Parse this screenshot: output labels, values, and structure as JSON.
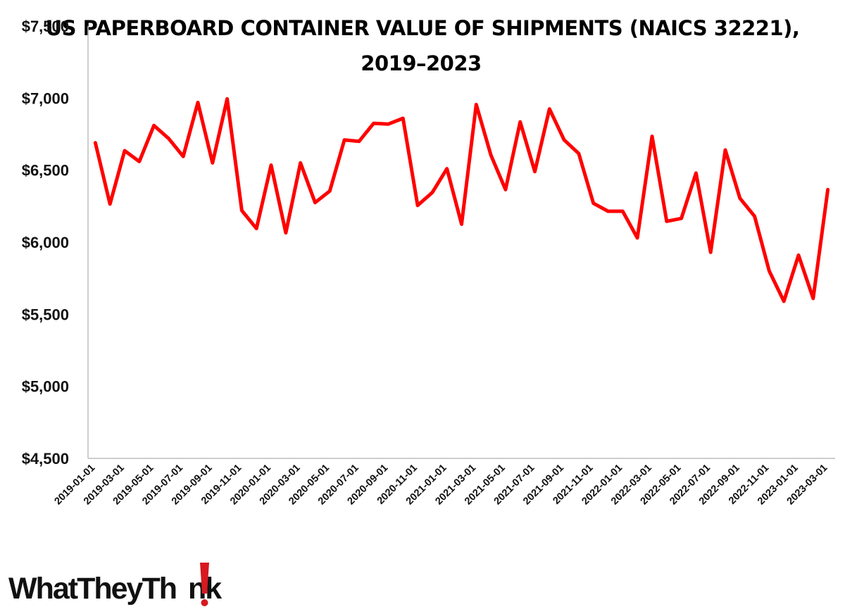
{
  "chart_data": {
    "type": "line",
    "title_lines": [
      "US  PAPERBOARD CONTAINER VALUE OF SHIPMENTS (NAICS 32221),",
      "2019–2023"
    ],
    "xlabel": "",
    "ylabel": "",
    "ylim": [
      4500,
      7500
    ],
    "yticks": [
      "$4,500",
      "$5,000",
      "$5,500",
      "$6,000",
      "$6,500",
      "$7,000",
      "$7,500"
    ],
    "ytick_values": [
      4500,
      5000,
      5500,
      6000,
      6500,
      7000,
      7500
    ],
    "xticks": [
      "2019-01-01",
      "2019-03-01",
      "2019-05-01",
      "2019-07-01",
      "2019-09-01",
      "2019-11-01",
      "2020-01-01",
      "2020-03-01",
      "2020-05-01",
      "2020-07-01",
      "2020-09-01",
      "2020-11-01",
      "2021-01-01",
      "2021-03-01",
      "2021-05-01",
      "2021-07-01",
      "2021-09-01",
      "2021-11-01",
      "2022-01-01",
      "2022-03-01",
      "2022-05-01",
      "2022-07-01",
      "2022-09-01",
      "2022-11-01",
      "2023-01-01",
      "2023-03-01"
    ],
    "grid": false,
    "legend": "none",
    "series": [
      {
        "color": "#ff0000",
        "x": [
          "2019-01-01",
          "2019-02-01",
          "2019-03-01",
          "2019-04-01",
          "2019-05-01",
          "2019-06-01",
          "2019-07-01",
          "2019-08-01",
          "2019-09-01",
          "2019-10-01",
          "2019-11-01",
          "2019-12-01",
          "2020-01-01",
          "2020-02-01",
          "2020-03-01",
          "2020-04-01",
          "2020-05-01",
          "2020-06-01",
          "2020-07-01",
          "2020-08-01",
          "2020-09-01",
          "2020-10-01",
          "2020-11-01",
          "2020-12-01",
          "2021-01-01",
          "2021-02-01",
          "2021-03-01",
          "2021-04-01",
          "2021-05-01",
          "2021-06-01",
          "2021-07-01",
          "2021-08-01",
          "2021-09-01",
          "2021-10-01",
          "2021-11-01",
          "2021-12-01",
          "2022-01-01",
          "2022-02-01",
          "2022-03-01",
          "2022-04-01",
          "2022-05-01",
          "2022-06-01",
          "2022-07-01",
          "2022-08-01",
          "2022-09-01",
          "2022-10-01",
          "2022-11-01",
          "2022-12-01",
          "2023-01-01",
          "2023-02-01",
          "2023-03-01"
        ],
        "values": [
          6690,
          6265,
          6635,
          6560,
          6810,
          6720,
          6595,
          6970,
          6550,
          6995,
          6220,
          6095,
          6535,
          6065,
          6550,
          6275,
          6355,
          6710,
          6700,
          6825,
          6820,
          6860,
          6255,
          6345,
          6510,
          6125,
          6955,
          6605,
          6365,
          6835,
          6490,
          6925,
          6710,
          6615,
          6270,
          6215,
          6215,
          6030,
          6735,
          6145,
          6165,
          6480,
          5930,
          6640,
          6305,
          6180,
          5800,
          5590,
          5910,
          5610,
          6365
        ]
      }
    ]
  },
  "brand": {
    "before": "WhatTheyTh",
    "after": "nk",
    "mark_color": "#d71920"
  }
}
